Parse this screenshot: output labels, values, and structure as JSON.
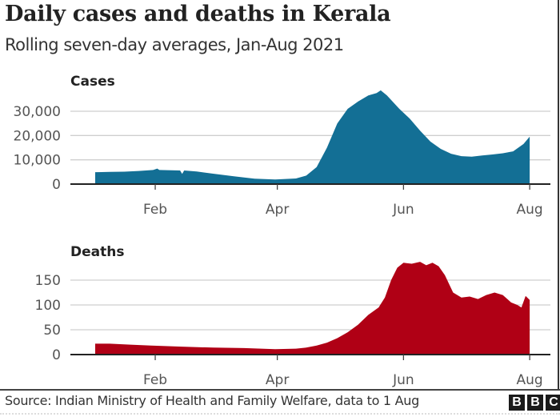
{
  "header": {
    "title": "Daily cases and deaths in Kerala",
    "subtitle": "Rolling seven-day averages, Jan-Aug 2021"
  },
  "footer": {
    "source": "Source: Indian Ministry of Health and Family Welfare, data to 1 Aug",
    "logo": [
      "B",
      "B",
      "C"
    ]
  },
  "chart_data": [
    {
      "type": "area",
      "title": "Cases",
      "xlabel": "",
      "ylabel": "",
      "x_unit": "day of year 2021",
      "x_ticks": [
        {
          "day": 32,
          "label": "Feb"
        },
        {
          "day": 91,
          "label": "Apr"
        },
        {
          "day": 152,
          "label": "Jun"
        },
        {
          "day": 213,
          "label": "Aug"
        }
      ],
      "y_ticks": [
        {
          "value": 0,
          "label": "0"
        },
        {
          "value": 10000,
          "label": "10,000"
        },
        {
          "value": 20000,
          "label": "20,000"
        },
        {
          "value": 30000,
          "label": "30,000"
        }
      ],
      "xlim": [
        -9,
        223
      ],
      "ylim": [
        0,
        30000
      ],
      "grid": true,
      "color": "#136f95",
      "series": [
        {
          "name": "Cases (7-day avg)",
          "x": [
            3,
            10,
            17,
            24,
            31,
            33,
            34,
            40,
            44,
            45,
            46,
            52,
            60,
            70,
            80,
            90,
            100,
            105,
            110,
            115,
            120,
            125,
            130,
            135,
            139,
            141,
            144,
            150,
            155,
            160,
            165,
            170,
            175,
            180,
            185,
            190,
            195,
            200,
            205,
            210,
            213
          ],
          "values": [
            4900,
            5000,
            5100,
            5400,
            5800,
            6400,
            5800,
            5700,
            5600,
            4200,
            5600,
            5200,
            4300,
            3200,
            2200,
            1900,
            2300,
            3500,
            7000,
            15000,
            25000,
            31000,
            34000,
            36500,
            37500,
            38600,
            36500,
            31000,
            27000,
            22000,
            17500,
            14500,
            12500,
            11500,
            11300,
            11800,
            12200,
            12700,
            13500,
            16500,
            19500
          ]
        }
      ]
    },
    {
      "type": "area",
      "title": "Deaths",
      "xlabel": "",
      "ylabel": "",
      "x_unit": "day of year 2021",
      "x_ticks": [
        {
          "day": 32,
          "label": "Feb"
        },
        {
          "day": 91,
          "label": "Apr"
        },
        {
          "day": 152,
          "label": "Jun"
        },
        {
          "day": 213,
          "label": "Aug"
        }
      ],
      "y_ticks": [
        {
          "value": 0,
          "label": "0"
        },
        {
          "value": 50,
          "label": "50"
        },
        {
          "value": 100,
          "label": "100"
        },
        {
          "value": 150,
          "label": "150"
        }
      ],
      "xlim": [
        -9,
        223
      ],
      "ylim": [
        0,
        150
      ],
      "grid": true,
      "color": "#b00015",
      "series": [
        {
          "name": "Deaths (7-day avg)",
          "x": [
            3,
            10,
            20,
            30,
            45,
            60,
            75,
            90,
            100,
            105,
            110,
            115,
            120,
            125,
            130,
            135,
            140,
            143,
            146,
            149,
            152,
            156,
            160,
            163,
            166,
            169,
            172,
            176,
            180,
            184,
            188,
            192,
            196,
            200,
            204,
            207,
            209,
            211,
            213
          ],
          "values": [
            22,
            22,
            20,
            18,
            16,
            14,
            13,
            11,
            12,
            14,
            18,
            24,
            33,
            45,
            60,
            80,
            95,
            115,
            150,
            175,
            185,
            183,
            187,
            180,
            185,
            178,
            160,
            125,
            115,
            117,
            112,
            120,
            125,
            120,
            105,
            100,
            95,
            118,
            110
          ]
        }
      ]
    }
  ]
}
